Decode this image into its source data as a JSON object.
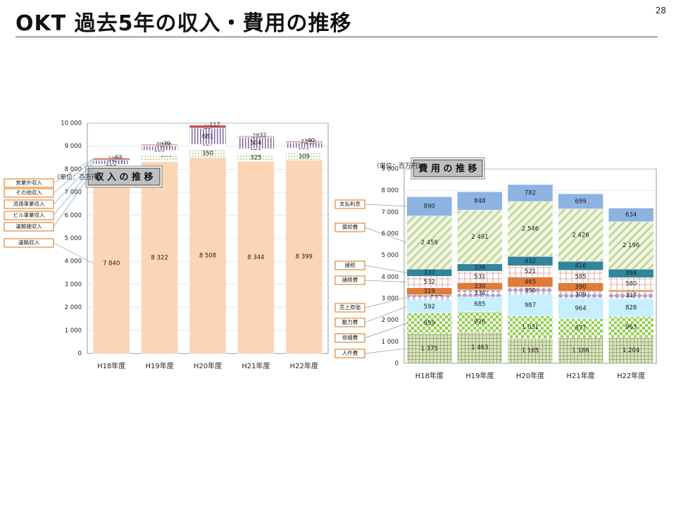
{
  "slide": {
    "title": "OKT 過去5年の収入・費用の推移",
    "page_number": "28"
  },
  "colors": {
    "unyu": "#fbd5b5",
    "bill": "#d6e3bc",
    "ryutsu": "#b7dde8",
    "sonota": "#ccc0da",
    "eigyogai": "#c0504d",
    "jinken": "#76923c",
    "shuzen": "#92d050",
    "dokyoku": "#c6efff",
    "genka": "#b2a1c7",
    "uriage": "#e07b39",
    "shokei": "#e6b9d8",
    "zeikin": "#31859c",
    "shokyaku": "#c4d79b",
    "shiharai": "#8db3e2",
    "axis": "#7f7f7f",
    "grid": "#d9d9d9",
    "label_border": "#e36c09"
  },
  "chart_data": [
    {
      "type": "bar",
      "stacked": true,
      "title": "収 入 の 推 移",
      "unit_note": "（単位：百万円）",
      "categories": [
        "H18年度",
        "H19年度",
        "H20年度",
        "H21年度",
        "H22年度"
      ],
      "ylim": [
        0,
        10000
      ],
      "yticks": [
        "0",
        "1 000",
        "2 000",
        "3 000",
        "4 000",
        "5 000",
        "6 000",
        "7 000",
        "8 000",
        "9 000",
        "10 000"
      ],
      "series": [
        {
          "name": "運輸収入",
          "values": [
            7840,
            8322,
            8508,
            8344,
            8399
          ],
          "labels": [
            "7 840",
            "8 322",
            "8 508",
            "8 344",
            "8 399"
          ]
        },
        {
          "name": "運輸雑収入",
          "values": [
            154,
            271,
            350,
            325,
            309
          ],
          "labels": [
            "154",
            "271",
            "350",
            "325",
            "309"
          ]
        },
        {
          "name": "ビル事業収入",
          "values": [
            222,
            225,
            227,
            221,
            221
          ],
          "labels": [
            "222",
            "225",
            "227",
            "221",
            "221"
          ]
        },
        {
          "name": "流通事業収入",
          "values": [
            170,
            189,
            681,
            504,
            218
          ],
          "labels": [
            "170",
            "189",
            "681",
            "504",
            "218"
          ]
        },
        {
          "name": "その他収入",
          "values": [
            30,
            30,
            29,
            28,
            33
          ],
          "labels": [
            "30",
            "30",
            "29",
            "28",
            "33"
          ]
        },
        {
          "name": "営業外収入",
          "values": [
            63,
            39,
            117,
            32,
            40
          ],
          "labels": [
            "63",
            "39",
            "117",
            "32",
            "40"
          ]
        }
      ]
    },
    {
      "type": "bar",
      "stacked": true,
      "title": "費 用 の 推 移",
      "unit_note": "（単位：百万円）",
      "categories": [
        "H18年度",
        "H19年度",
        "H20年度",
        "H21年度",
        "H22年度"
      ],
      "ylim": [
        0,
        9000
      ],
      "yticks": [
        "0",
        "1 000",
        "2 000",
        "3 000",
        "4 000",
        "5 000",
        "6 000",
        "7 000",
        "8 000",
        "9 000"
      ],
      "series": [
        {
          "name": "人件費",
          "values": [
            1375,
            1463,
            1165,
            1186,
            1204
          ],
          "labels": [
            "1 375",
            "1 463",
            "1 165",
            "1 186",
            "1 204"
          ]
        },
        {
          "name": "修繕費",
          "values": [
            959,
            926,
            1031,
            877,
            963
          ],
          "labels": [
            "959",
            "926",
            "1 031",
            "877",
            "963"
          ]
        },
        {
          "name": "動力費",
          "values": [
            592,
            685,
            987,
            964,
            828
          ],
          "labels": [
            "592",
            "685",
            "987",
            "964",
            "828"
          ]
        },
        {
          "name": "売上原価",
          "values": [
            252,
            334,
            350,
            309,
            317
          ],
          "labels": [
            "252",
            "334",
            "350",
            "309",
            "317"
          ]
        },
        {
          "name": "",
          "values": [
            319,
            330,
            465,
            390,
            77
          ],
          "labels": [
            "319",
            "330",
            "465",
            "390",
            "77"
          ]
        },
        {
          "name": "諸経費",
          "values": [
            532,
            531,
            521,
            585,
            580
          ],
          "labels": [
            "532",
            "531",
            "521",
            "585",
            "580"
          ]
        },
        {
          "name": "諸税",
          "values": [
            337,
            336,
            432,
            416,
            394
          ],
          "labels": [
            "337",
            "336",
            "432",
            "416",
            "394"
          ]
        },
        {
          "name": "償却費",
          "values": [
            2459,
            2491,
            2546,
            2426,
            2196
          ],
          "labels": [
            "2 459",
            "2 491",
            "2 546",
            "2 426",
            "2 196"
          ]
        },
        {
          "name": "支払利息",
          "values": [
            890,
            848,
            782,
            699,
            634
          ],
          "labels": [
            "890",
            "848",
            "782",
            "699",
            "634"
          ]
        }
      ]
    }
  ]
}
